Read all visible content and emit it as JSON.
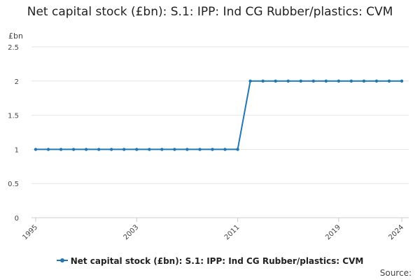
{
  "title": "Net capital stock (£bn): S.1: IPP: Ind CG Rubber/plastics: CVM",
  "source_label": "Source:",
  "colors": {
    "series": "#1f77b4",
    "grid": "#e6e6e6",
    "axis": "#cccccc"
  },
  "chart_data": {
    "type": "line",
    "title": "Net capital stock (£bn): S.1: IPP: Ind CG Rubber/plastics: CVM",
    "ylabel": "£bn",
    "xlabel": "",
    "ylim": [
      0,
      2.5
    ],
    "yticks": [
      0,
      0.5,
      1,
      1.5,
      2,
      2.5
    ],
    "xlim": [
      1995,
      2024
    ],
    "xtick_labels": [
      "1995",
      "2003",
      "2011",
      "2019",
      "2024"
    ],
    "grid": true,
    "legend_position": "bottom",
    "series": [
      {
        "name": "Net capital stock (£bn): S.1: IPP: Ind CG Rubber/plastics: CVM",
        "x": [
          1995,
          1996,
          1997,
          1998,
          1999,
          2000,
          2001,
          2002,
          2003,
          2004,
          2005,
          2006,
          2007,
          2008,
          2009,
          2010,
          2011,
          2012,
          2013,
          2014,
          2015,
          2016,
          2017,
          2018,
          2019,
          2020,
          2021,
          2022,
          2023,
          2024
        ],
        "y": [
          1,
          1,
          1,
          1,
          1,
          1,
          1,
          1,
          1,
          1,
          1,
          1,
          1,
          1,
          1,
          1,
          1,
          2,
          2,
          2,
          2,
          2,
          2,
          2,
          2,
          2,
          2,
          2,
          2,
          2
        ]
      }
    ]
  }
}
